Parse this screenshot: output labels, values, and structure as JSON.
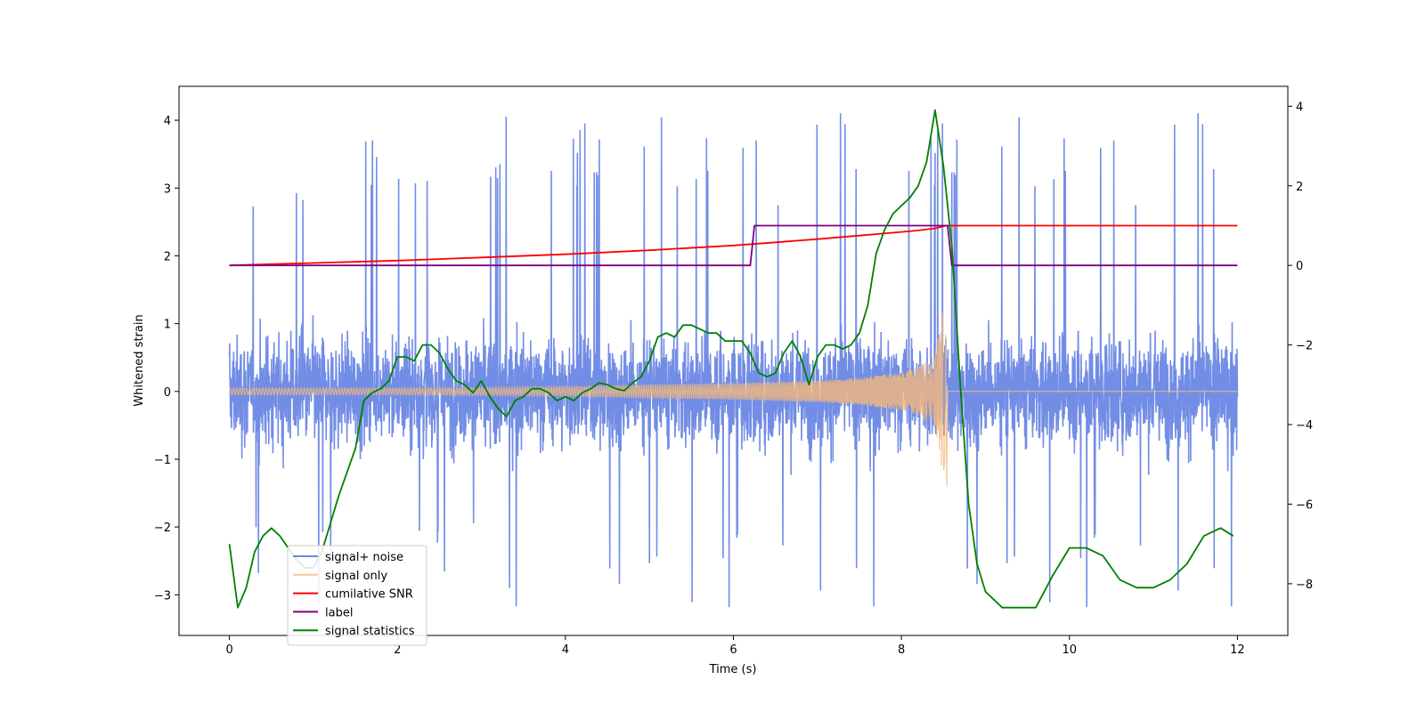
{
  "chart_data": {
    "type": "line",
    "title": "",
    "xlabel": "Time (s)",
    "ylabel": "Whitened strain",
    "y2label": "",
    "xlim": [
      -0.6,
      12.6
    ],
    "ylim": [
      -3.6,
      4.5
    ],
    "y2lim": [
      -9.3,
      4.5
    ],
    "xticks": [
      0,
      2,
      4,
      6,
      8,
      10,
      12
    ],
    "yticks": [
      -3,
      -2,
      -1,
      0,
      1,
      2,
      3,
      4
    ],
    "y2ticks": [
      -8,
      -6,
      -4,
      -2,
      0,
      2,
      4
    ],
    "grid": false,
    "legend_position": "lower-left",
    "series": [
      {
        "name": "signal+ noise",
        "axis": "left",
        "color": "#6a87e4",
        "kind": "noise-band",
        "x_range": [
          0,
          12
        ],
        "typical_range": [
          -1.5,
          1.5
        ],
        "extreme_range": [
          -3.2,
          4.2
        ]
      },
      {
        "name": "signal only",
        "axis": "left",
        "color": "#f5b97b",
        "kind": "chirp-envelope",
        "envelope_x": [
          0,
          2,
          4,
          5,
          6,
          7,
          7.5,
          8,
          8.2,
          8.4,
          8.5,
          8.53
        ],
        "envelope_y": [
          0.05,
          0.05,
          0.07,
          0.1,
          0.12,
          0.16,
          0.2,
          0.28,
          0.36,
          0.55,
          1.25,
          0.8
        ],
        "post_merger_x": [
          8.55,
          12
        ],
        "post_merger_y": 0
      },
      {
        "name": "cumilative SNR",
        "axis": "right",
        "color": "#ff0000",
        "x": [
          0,
          1,
          2,
          3,
          4,
          5,
          6,
          6.5,
          7,
          7.5,
          8,
          8.2,
          8.4,
          8.53,
          8.55,
          12
        ],
        "y": [
          0.0,
          0.06,
          0.12,
          0.2,
          0.28,
          0.38,
          0.5,
          0.58,
          0.66,
          0.75,
          0.84,
          0.88,
          0.93,
          1.0,
          1.0,
          1.0
        ]
      },
      {
        "name": "label",
        "axis": "right",
        "color": "#800080",
        "x": [
          0,
          6.2,
          6.25,
          8.55,
          8.6,
          12
        ],
        "y": [
          0,
          0,
          1,
          1,
          0,
          0
        ]
      },
      {
        "name": "signal statistics",
        "axis": "right",
        "color": "#008000",
        "x": [
          0,
          0.1,
          0.2,
          0.3,
          0.4,
          0.5,
          0.6,
          0.7,
          0.8,
          0.9,
          1.0,
          1.1,
          1.2,
          1.3,
          1.4,
          1.5,
          1.6,
          1.7,
          1.8,
          1.9,
          2.0,
          2.1,
          2.2,
          2.3,
          2.4,
          2.5,
          2.6,
          2.7,
          2.8,
          2.9,
          3.0,
          3.1,
          3.2,
          3.3,
          3.4,
          3.5,
          3.6,
          3.7,
          3.8,
          3.9,
          4.0,
          4.1,
          4.2,
          4.3,
          4.4,
          4.5,
          4.6,
          4.7,
          4.8,
          4.9,
          5.0,
          5.1,
          5.2,
          5.3,
          5.4,
          5.5,
          5.6,
          5.7,
          5.8,
          5.9,
          6.0,
          6.1,
          6.2,
          6.3,
          6.4,
          6.5,
          6.6,
          6.7,
          6.8,
          6.9,
          7.0,
          7.1,
          7.2,
          7.3,
          7.4,
          7.5,
          7.6,
          7.7,
          7.8,
          7.9,
          8.0,
          8.1,
          8.2,
          8.3,
          8.4,
          8.5,
          8.6,
          8.7,
          8.8,
          8.9,
          9.0,
          9.2,
          9.4,
          9.6,
          9.8,
          10.0,
          10.2,
          10.4,
          10.6,
          10.8,
          11.0,
          11.2,
          11.4,
          11.6,
          11.8,
          11.95
        ],
        "y": [
          -7.0,
          -8.6,
          -8.1,
          -7.2,
          -6.8,
          -6.6,
          -6.8,
          -7.1,
          -7.4,
          -7.6,
          -7.6,
          -7.2,
          -6.5,
          -5.8,
          -5.2,
          -4.6,
          -3.4,
          -3.2,
          -3.1,
          -2.9,
          -2.3,
          -2.3,
          -2.4,
          -2.0,
          -2.0,
          -2.2,
          -2.6,
          -2.9,
          -3.0,
          -3.2,
          -2.9,
          -3.3,
          -3.6,
          -3.8,
          -3.4,
          -3.3,
          -3.1,
          -3.1,
          -3.2,
          -3.4,
          -3.3,
          -3.4,
          -3.2,
          -3.1,
          -2.95,
          -3.0,
          -3.1,
          -3.15,
          -2.95,
          -2.8,
          -2.4,
          -1.8,
          -1.7,
          -1.8,
          -1.5,
          -1.5,
          -1.6,
          -1.7,
          -1.7,
          -1.9,
          -1.9,
          -1.9,
          -2.2,
          -2.7,
          -2.8,
          -2.7,
          -2.2,
          -1.9,
          -2.3,
          -3.0,
          -2.3,
          -2.0,
          -2.0,
          -2.1,
          -2.0,
          -1.7,
          -1.0,
          0.3,
          0.9,
          1.3,
          1.5,
          1.7,
          2.0,
          2.6,
          3.9,
          2.5,
          0.5,
          -3.0,
          -6.0,
          -7.5,
          -8.2,
          -8.6,
          -8.6,
          -8.6,
          -7.8,
          -7.1,
          -7.1,
          -7.3,
          -7.9,
          -8.1,
          -8.1,
          -7.9,
          -7.5,
          -6.8,
          -6.6,
          -6.8
        ]
      }
    ]
  }
}
